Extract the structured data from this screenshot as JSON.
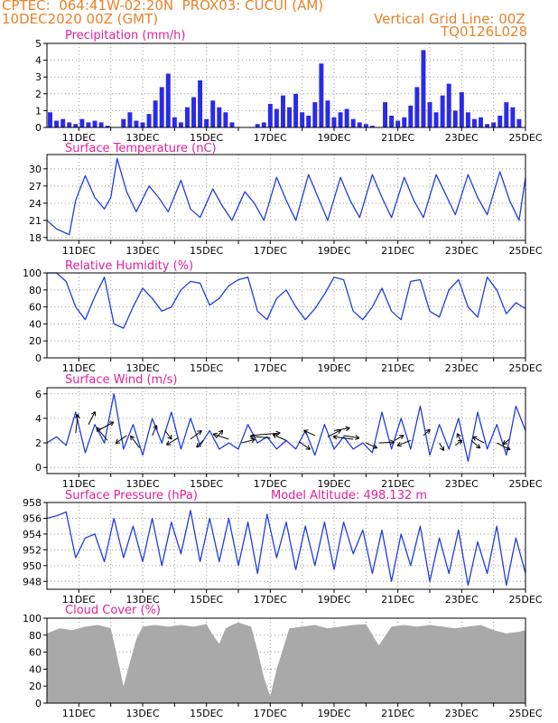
{
  "header": {
    "line1_left": "CPTEC:  064:41W-02:20N  PROX03: CUCUI (AM)",
    "line2_left": "10DEC2020 00Z (GMT)",
    "line1_right": "Vertical Grid Line: 00Z",
    "line2_right": "TQ0126L028"
  },
  "colors": {
    "header": "#e8822a",
    "panel_title": "#e0209a",
    "series_line": "#1f3ee0",
    "bar_fill": "#2a2ae8",
    "cloud_fill": "#a9a9a9",
    "grid": "#9a9a9a",
    "axis": "#000000"
  },
  "x_axis": {
    "start_day": 10,
    "end_day": 25,
    "month": "DEC",
    "tick_labels": [
      "11DEC",
      "13DEC",
      "15DEC",
      "17DEC",
      "19DEC",
      "21DEC",
      "23DEC",
      "25DEC"
    ]
  },
  "chart_data": [
    {
      "id": "precip",
      "type": "bar",
      "title": "Precipitation (mm/h)",
      "ylim": [
        0,
        5
      ],
      "yticks": [
        "0",
        "1",
        "2",
        "3",
        "4",
        "5"
      ],
      "x": [
        10.1,
        10.3,
        10.5,
        10.7,
        10.9,
        11.1,
        11.3,
        11.5,
        11.7,
        11.9,
        12.4,
        12.6,
        12.8,
        13.0,
        13.2,
        13.4,
        13.6,
        13.8,
        14.0,
        14.2,
        14.4,
        14.6,
        14.8,
        15.0,
        15.2,
        15.4,
        15.6,
        15.8,
        16.6,
        16.8,
        17.0,
        17.2,
        17.4,
        17.6,
        17.8,
        18.0,
        18.2,
        18.4,
        18.6,
        18.8,
        19.0,
        19.2,
        19.4,
        19.6,
        19.8,
        20.0,
        20.2,
        20.6,
        20.8,
        21.0,
        21.2,
        21.4,
        21.6,
        21.8,
        22.0,
        22.2,
        22.4,
        22.6,
        22.8,
        23.0,
        23.2,
        23.4,
        23.6,
        23.8,
        24.0,
        24.2,
        24.4,
        24.6,
        24.8
      ],
      "values": [
        0.9,
        0.4,
        0.5,
        0.3,
        0.2,
        0.5,
        0.3,
        0.4,
        0.3,
        0.1,
        0.5,
        0.9,
        0.4,
        0.3,
        0.8,
        1.6,
        2.4,
        3.2,
        0.6,
        0.3,
        1.2,
        1.8,
        2.8,
        0.5,
        1.6,
        1.2,
        0.9,
        0.3,
        0.2,
        0.3,
        1.4,
        1.1,
        1.9,
        1.2,
        2.0,
        0.9,
        0.7,
        1.5,
        3.8,
        1.6,
        0.6,
        0.9,
        1.1,
        0.5,
        0.3,
        0.2,
        0.1,
        1.5,
        0.7,
        0.4,
        0.6,
        1.3,
        2.4,
        4.6,
        1.5,
        0.9,
        1.9,
        2.6,
        1.0,
        2.1,
        0.9,
        0.5,
        0.6,
        0.2,
        0.3,
        0.7,
        1.5,
        1.2,
        0.5
      ]
    },
    {
      "id": "temp",
      "type": "line",
      "title": "Surface Temperature (nC)",
      "ylim": [
        17.5,
        32.5
      ],
      "yticks": [
        "18",
        "21",
        "24",
        "27",
        "30"
      ],
      "x": [
        10.0,
        10.3,
        10.5,
        10.7,
        10.9,
        11.2,
        11.5,
        11.8,
        12.0,
        12.2,
        12.5,
        12.8,
        13.2,
        13.5,
        13.8,
        14.2,
        14.5,
        14.8,
        15.2,
        15.5,
        15.8,
        16.2,
        16.5,
        16.8,
        17.2,
        17.5,
        17.8,
        18.2,
        18.5,
        18.8,
        19.2,
        19.5,
        19.8,
        20.2,
        20.5,
        20.8,
        21.2,
        21.5,
        21.8,
        22.2,
        22.5,
        22.8,
        23.2,
        23.5,
        23.8,
        24.2,
        24.5,
        24.8,
        25.0
      ],
      "values": [
        21.0,
        19.5,
        19.0,
        18.5,
        24.5,
        28.8,
        25.0,
        23.0,
        25.0,
        31.8,
        26.0,
        22.5,
        27.0,
        25.0,
        22.5,
        28.0,
        23.0,
        21.5,
        26.5,
        23.5,
        21.0,
        26.0,
        24.0,
        21.0,
        28.5,
        24.5,
        21.0,
        29.0,
        25.0,
        21.0,
        28.5,
        24.5,
        21.5,
        29.0,
        25.0,
        21.5,
        28.5,
        24.5,
        21.5,
        29.0,
        25.5,
        22.0,
        29.0,
        25.0,
        22.0,
        29.5,
        24.5,
        21.0,
        28.5
      ]
    },
    {
      "id": "rh",
      "type": "line",
      "title": "Relative Humidity (%)",
      "ylim": [
        0,
        100
      ],
      "yticks": [
        "0",
        "20",
        "40",
        "60",
        "80",
        "100"
      ],
      "x": [
        10.0,
        10.3,
        10.6,
        10.9,
        11.2,
        11.5,
        11.8,
        12.1,
        12.4,
        12.7,
        13.0,
        13.3,
        13.6,
        13.9,
        14.2,
        14.5,
        14.8,
        15.1,
        15.4,
        15.7,
        16.0,
        16.3,
        16.6,
        16.9,
        17.2,
        17.5,
        17.8,
        18.1,
        18.4,
        18.7,
        19.0,
        19.3,
        19.6,
        19.9,
        20.2,
        20.5,
        20.8,
        21.1,
        21.4,
        21.7,
        22.0,
        22.3,
        22.6,
        22.9,
        23.2,
        23.5,
        23.8,
        24.1,
        24.4,
        24.7,
        25.0
      ],
      "values": [
        100,
        100,
        90,
        60,
        45,
        72,
        95,
        40,
        35,
        60,
        82,
        70,
        55,
        60,
        80,
        90,
        88,
        62,
        70,
        85,
        92,
        95,
        55,
        45,
        70,
        80,
        60,
        45,
        58,
        75,
        95,
        92,
        55,
        45,
        60,
        82,
        55,
        45,
        90,
        92,
        55,
        48,
        80,
        92,
        60,
        48,
        95,
        80,
        52,
        65,
        58
      ]
    },
    {
      "id": "wind",
      "type": "line",
      "title": "Surface Wind (m/s)",
      "ylim": [
        -0.5,
        6.5
      ],
      "yticks": [
        "0",
        "2",
        "4",
        "6"
      ],
      "x": [
        10.0,
        10.3,
        10.6,
        10.9,
        11.2,
        11.5,
        11.8,
        12.1,
        12.4,
        12.7,
        13.0,
        13.3,
        13.6,
        13.9,
        14.2,
        14.5,
        14.8,
        15.1,
        15.4,
        15.7,
        16.0,
        16.3,
        16.6,
        16.9,
        17.2,
        17.5,
        17.8,
        18.1,
        18.4,
        18.7,
        19.0,
        19.3,
        19.6,
        19.9,
        20.2,
        20.5,
        20.8,
        21.1,
        21.4,
        21.7,
        22.0,
        22.3,
        22.6,
        22.9,
        23.2,
        23.5,
        23.8,
        24.1,
        24.4,
        24.7,
        25.0
      ],
      "values": [
        2.0,
        2.5,
        1.8,
        4.5,
        1.2,
        3.5,
        2.0,
        6.0,
        1.5,
        3.5,
        1.0,
        4.0,
        2.0,
        4.5,
        1.5,
        4.0,
        1.8,
        3.0,
        1.5,
        2.0,
        1.5,
        3.5,
        2.0,
        2.5,
        1.5,
        2.2,
        1.5,
        3.0,
        1.0,
        3.5,
        1.5,
        2.5,
        1.5,
        2.0,
        1.2,
        4.5,
        1.5,
        4.0,
        1.5,
        5.0,
        1.0,
        3.5,
        1.5,
        4.0,
        0.5,
        4.5,
        1.5,
        3.5,
        1.0,
        5.0,
        3.0
      ],
      "arrows": [
        {
          "x": 10.9,
          "y": 2.8,
          "dx": 0.1,
          "dy": 2.2
        },
        {
          "x": 11.3,
          "y": 3.5,
          "dx": 0.3,
          "dy": 1.5
        },
        {
          "x": 11.6,
          "y": 3.0,
          "dx": 0.7,
          "dy": 1.0
        },
        {
          "x": 11.9,
          "y": 2.2,
          "dx": -0.5,
          "dy": 1.5
        },
        {
          "x": 12.5,
          "y": 2.6,
          "dx": -0.5,
          "dy": -0.9
        },
        {
          "x": 12.9,
          "y": 1.6,
          "dx": -0.4,
          "dy": 1.4
        },
        {
          "x": 13.3,
          "y": 2.6,
          "dx": 0.2,
          "dy": 1.2
        },
        {
          "x": 13.7,
          "y": 3.0,
          "dx": 0.3,
          "dy": -1.0
        },
        {
          "x": 14.1,
          "y": 2.4,
          "dx": -0.5,
          "dy": -0.8
        },
        {
          "x": 14.5,
          "y": 2.3,
          "dx": 0.5,
          "dy": 1.0
        },
        {
          "x": 14.9,
          "y": 2.2,
          "dx": -0.3,
          "dy": -0.8
        },
        {
          "x": 15.3,
          "y": 2.4,
          "dx": 0.3,
          "dy": 0.9
        },
        {
          "x": 15.7,
          "y": 2.3,
          "dx": -0.7,
          "dy": 0.6
        },
        {
          "x": 16.1,
          "y": 2.0,
          "dx": 0.6,
          "dy": 0.4
        },
        {
          "x": 16.4,
          "y": 2.6,
          "dx": 1.3,
          "dy": 0.3
        },
        {
          "x": 17.0,
          "y": 2.4,
          "dx": -0.9,
          "dy": 0.2
        },
        {
          "x": 17.5,
          "y": 2.2,
          "dx": -0.6,
          "dy": 0.7
        },
        {
          "x": 17.9,
          "y": 2.1,
          "dx": 0.5,
          "dy": -0.9
        },
        {
          "x": 18.4,
          "y": 2.6,
          "dx": -0.5,
          "dy": 0.6
        },
        {
          "x": 18.8,
          "y": 2.5,
          "dx": 0.6,
          "dy": 0.8
        },
        {
          "x": 19.0,
          "y": 3.0,
          "dx": 0.7,
          "dy": 0.3
        },
        {
          "x": 19.3,
          "y": 2.6,
          "dx": 0.7,
          "dy": -0.3
        },
        {
          "x": 19.6,
          "y": 2.3,
          "dx": -0.9,
          "dy": 0.3
        },
        {
          "x": 20.0,
          "y": 2.0,
          "dx": 0.5,
          "dy": -0.6
        },
        {
          "x": 20.4,
          "y": 2.0,
          "dx": 0.7,
          "dy": 0.1
        },
        {
          "x": 20.9,
          "y": 2.2,
          "dx": 0.4,
          "dy": 0.6
        },
        {
          "x": 21.4,
          "y": 2.2,
          "dx": -0.6,
          "dy": -0.6
        },
        {
          "x": 21.8,
          "y": 2.6,
          "dx": 0.3,
          "dy": 0.7
        },
        {
          "x": 22.3,
          "y": 2.0,
          "dx": 0.2,
          "dy": -0.9
        },
        {
          "x": 22.8,
          "y": 1.8,
          "dx": 0.3,
          "dy": 0.6
        },
        {
          "x": 23.0,
          "y": 2.0,
          "dx": -0.2,
          "dy": 1.1
        },
        {
          "x": 23.3,
          "y": 2.2,
          "dx": 0.4,
          "dy": -0.9
        },
        {
          "x": 23.7,
          "y": 2.0,
          "dx": -0.5,
          "dy": 0.7
        },
        {
          "x": 24.1,
          "y": 2.0,
          "dx": 0.6,
          "dy": -0.8
        },
        {
          "x": 24.5,
          "y": 2.3,
          "dx": -0.3,
          "dy": -0.6
        }
      ]
    },
    {
      "id": "pres",
      "type": "line",
      "title": "Surface Pressure (hPa)",
      "annotation": "Model Altitude: 498.132 m",
      "ylim": [
        947,
        958
      ],
      "yticks": [
        "948",
        "950",
        "952",
        "954",
        "956",
        "958"
      ],
      "x": [
        10.0,
        10.3,
        10.6,
        10.9,
        11.2,
        11.5,
        11.8,
        12.1,
        12.4,
        12.7,
        13.0,
        13.3,
        13.6,
        13.9,
        14.2,
        14.5,
        14.8,
        15.1,
        15.4,
        15.7,
        16.0,
        16.3,
        16.6,
        16.9,
        17.2,
        17.5,
        17.8,
        18.1,
        18.4,
        18.7,
        19.0,
        19.3,
        19.6,
        19.9,
        20.2,
        20.5,
        20.8,
        21.1,
        21.4,
        21.7,
        22.0,
        22.3,
        22.6,
        22.9,
        23.2,
        23.5,
        23.8,
        24.1,
        24.4,
        24.7,
        25.0
      ],
      "values": [
        956.0,
        956.3,
        956.8,
        951.0,
        953.5,
        954.0,
        950.5,
        956.0,
        951.0,
        955.0,
        950.5,
        956.0,
        950.0,
        955.5,
        951.5,
        957.0,
        950.5,
        956.0,
        950.5,
        956.0,
        950.0,
        955.5,
        949.0,
        956.5,
        951.0,
        955.5,
        949.5,
        955.0,
        950.0,
        955.5,
        949.5,
        955.5,
        951.5,
        954.5,
        949.0,
        954.5,
        948.0,
        954.0,
        950.0,
        955.0,
        948.0,
        953.5,
        949.0,
        954.5,
        947.5,
        953.0,
        949.0,
        955.0,
        947.5,
        953.5,
        949.0
      ]
    },
    {
      "id": "cloud",
      "type": "area",
      "title": "Cloud Cover (%)",
      "ylim": [
        0,
        100
      ],
      "yticks": [
        "0",
        "20",
        "40",
        "60",
        "80",
        "100"
      ],
      "x": [
        10.0,
        10.4,
        10.8,
        11.2,
        11.6,
        12.0,
        12.2,
        12.4,
        12.6,
        12.8,
        13.0,
        13.4,
        13.8,
        14.2,
        14.6,
        15.0,
        15.2,
        15.4,
        15.6,
        15.8,
        16.0,
        16.4,
        16.6,
        16.8,
        17.0,
        17.2,
        17.6,
        18.0,
        18.4,
        18.8,
        19.2,
        19.6,
        20.0,
        20.4,
        20.8,
        21.2,
        21.6,
        22.0,
        22.4,
        22.8,
        23.2,
        23.6,
        24.0,
        24.4,
        24.8,
        25.0
      ],
      "values": [
        82,
        88,
        86,
        90,
        92,
        88,
        55,
        20,
        48,
        75,
        90,
        92,
        90,
        92,
        90,
        93,
        80,
        70,
        88,
        92,
        95,
        90,
        62,
        30,
        8,
        40,
        88,
        90,
        92,
        88,
        90,
        92,
        93,
        68,
        90,
        92,
        90,
        92,
        90,
        88,
        90,
        92,
        86,
        82,
        84,
        86
      ]
    }
  ]
}
